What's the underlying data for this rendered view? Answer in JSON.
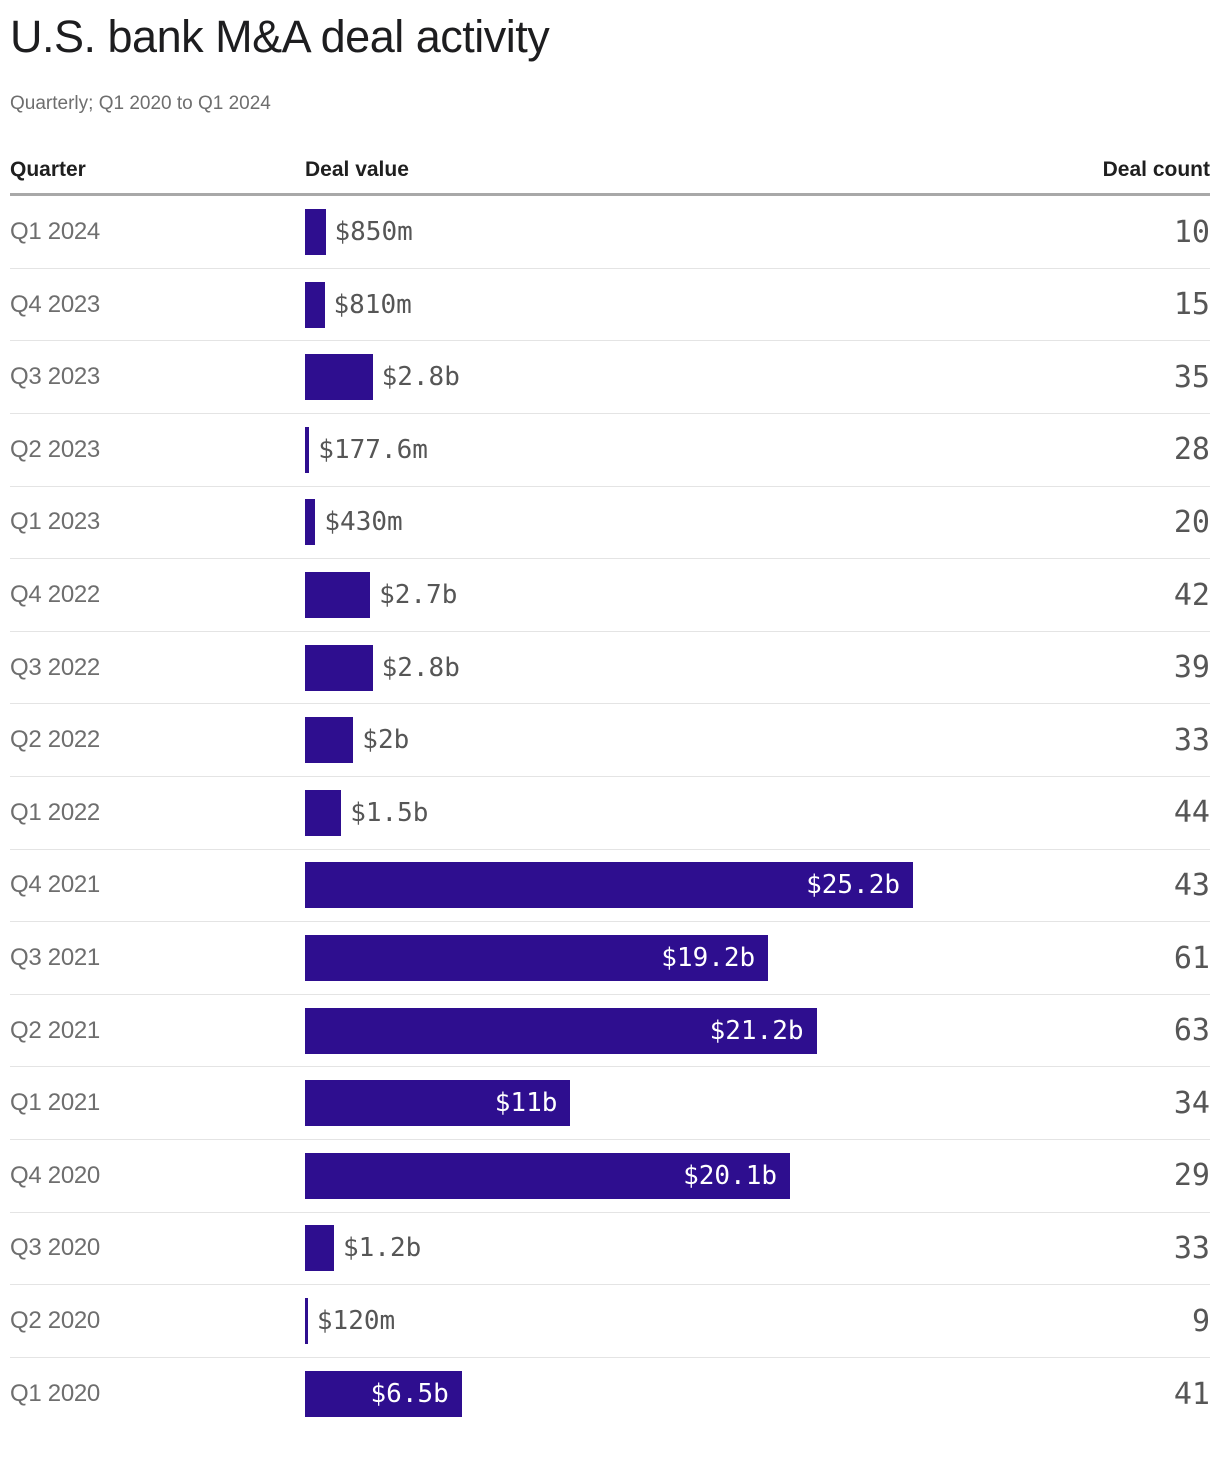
{
  "page": {
    "title": "U.S. bank M&A deal activity",
    "subtitle": "Quarterly; Q1 2020 to Q1 2024"
  },
  "table_headers": {
    "quarter": "Quarter",
    "deal_value": "Deal value",
    "deal_count": "Deal count"
  },
  "colors": {
    "bar": "#2e0e8f",
    "bar_label_inside": "#ffffff",
    "bar_label_outside": "#565656",
    "quarter_label": "#6e6e6e",
    "header_text": "#1f1f1f",
    "thick_rule": "#a8a8a8",
    "thin_rule": "#e4e4e4"
  },
  "chart_data": {
    "type": "bar",
    "orientation": "horizontal",
    "title": "U.S. bank M&A deal activity",
    "subtitle": "Quarterly; Q1 2020 to Q1 2024",
    "categories": [
      "Q1 2024",
      "Q4 2023",
      "Q3 2023",
      "Q2 2023",
      "Q1 2023",
      "Q4 2022",
      "Q3 2022",
      "Q2 2022",
      "Q1 2022",
      "Q4 2021",
      "Q3 2021",
      "Q2 2021",
      "Q1 2021",
      "Q4 2020",
      "Q3 2020",
      "Q2 2020",
      "Q1 2020"
    ],
    "series": [
      {
        "name": "Deal value ($ billions)",
        "values": [
          0.85,
          0.81,
          2.8,
          0.1776,
          0.43,
          2.7,
          2.8,
          2,
          1.5,
          25.2,
          19.2,
          21.2,
          11,
          20.1,
          1.2,
          0.12,
          6.5
        ],
        "labels": [
          "$850m",
          "$810m",
          "$2.8b",
          "$177.6m",
          "$430m",
          "$2.7b",
          "$2.8b",
          "$2b",
          "$1.5b",
          "$25.2b",
          "$19.2b",
          "$21.2b",
          "$11b",
          "$20.1b",
          "$1.2b",
          "$120m",
          "$6.5b"
        ]
      },
      {
        "name": "Deal count",
        "values": [
          10,
          15,
          35,
          28,
          20,
          42,
          39,
          33,
          44,
          43,
          61,
          63,
          34,
          29,
          33,
          9,
          41
        ]
      }
    ],
    "xlim": [
      0,
      25.2
    ],
    "grid": false,
    "legend_position": "none"
  }
}
